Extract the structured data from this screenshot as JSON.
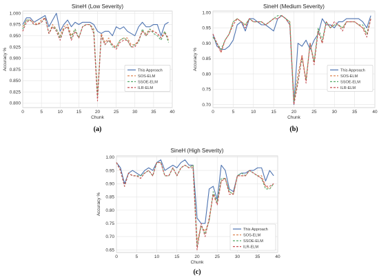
{
  "chart_data": [
    {
      "type": "line",
      "panel_label": "(a)",
      "title": "SineH (Low Severity)",
      "xlabel": "Chunk",
      "ylabel": "Accuracy %",
      "xlim": [
        0,
        40
      ],
      "ylim": [
        0.79,
        1.005
      ],
      "xticks": [
        0,
        5,
        10,
        15,
        20,
        25,
        30,
        35,
        40
      ],
      "yticks": [
        0.8,
        0.825,
        0.85,
        0.875,
        0.9,
        0.925,
        0.95,
        0.975,
        1.0
      ],
      "ytick_labels": [
        "0.800",
        "0.825",
        "0.850",
        "0.875",
        "0.900",
        "0.925",
        "0.950",
        "0.975",
        "1.000"
      ],
      "grid": true,
      "legend_position": "center-right",
      "x": [
        0,
        1,
        2,
        3,
        4,
        5,
        6,
        7,
        8,
        9,
        10,
        11,
        12,
        13,
        14,
        15,
        16,
        17,
        18,
        19,
        20,
        21,
        22,
        23,
        24,
        25,
        26,
        27,
        28,
        29,
        30,
        31,
        32,
        33,
        34,
        35,
        36,
        37,
        38,
        39
      ],
      "series": [
        {
          "name": "This Approach",
          "color": "#4c72b0",
          "dash": "",
          "values": [
            0.975,
            0.99,
            0.99,
            0.98,
            0.985,
            0.99,
            0.995,
            0.97,
            0.985,
            1.0,
            0.96,
            0.975,
            0.985,
            0.97,
            0.98,
            0.975,
            0.98,
            0.98,
            0.98,
            0.975,
            0.96,
            0.955,
            0.96,
            0.96,
            0.95,
            0.97,
            0.965,
            0.97,
            0.96,
            0.955,
            0.95,
            0.97,
            0.98,
            0.97,
            0.97,
            0.975,
            0.975,
            0.95,
            0.975,
            0.98
          ]
        },
        {
          "name": "SOS-ELM",
          "color": "#dd8452",
          "dash": "3 2",
          "values": [
            0.97,
            0.985,
            0.985,
            0.98,
            0.975,
            0.985,
            0.99,
            0.955,
            0.975,
            0.965,
            0.95,
            0.97,
            0.975,
            0.95,
            0.965,
            0.945,
            0.97,
            0.975,
            0.975,
            0.965,
            0.82,
            0.955,
            0.935,
            0.945,
            0.93,
            0.925,
            0.94,
            0.945,
            0.945,
            0.93,
            0.93,
            0.94,
            0.96,
            0.955,
            0.965,
            0.96,
            0.955,
            0.945,
            0.96,
            0.94
          ]
        },
        {
          "name": "SSOE-ELM",
          "color": "#55a868",
          "dash": "3 2",
          "values": [
            0.965,
            0.985,
            0.985,
            0.975,
            0.975,
            0.98,
            0.99,
            0.955,
            0.97,
            0.965,
            0.945,
            0.965,
            0.97,
            0.945,
            0.965,
            0.945,
            0.97,
            0.975,
            0.975,
            0.96,
            0.815,
            0.95,
            0.93,
            0.94,
            0.925,
            0.925,
            0.94,
            0.945,
            0.94,
            0.925,
            0.93,
            0.935,
            0.965,
            0.95,
            0.965,
            0.955,
            0.95,
            0.94,
            0.96,
            0.935
          ]
        },
        {
          "name": "ILR-ELM",
          "color": "#c44e52",
          "dash": "3 2",
          "values": [
            0.96,
            0.98,
            0.985,
            0.975,
            0.975,
            0.98,
            0.99,
            0.955,
            0.97,
            0.96,
            0.94,
            0.965,
            0.97,
            0.94,
            0.96,
            0.945,
            0.97,
            0.975,
            0.975,
            0.955,
            0.805,
            0.95,
            0.93,
            0.94,
            0.93,
            0.92,
            0.935,
            0.94,
            0.94,
            0.925,
            0.925,
            0.94,
            0.96,
            0.95,
            0.96,
            0.96,
            0.955,
            0.945,
            0.955,
            0.945
          ]
        }
      ]
    },
    {
      "type": "line",
      "panel_label": "(b)",
      "title": "SineH (Medium Severity)",
      "xlabel": "Chunk",
      "ylabel": "Accuracy %",
      "xlim": [
        0,
        40
      ],
      "ylim": [
        0.69,
        1.005
      ],
      "xticks": [
        0,
        5,
        10,
        15,
        20,
        25,
        30,
        35,
        40
      ],
      "yticks": [
        0.7,
        0.75,
        0.8,
        0.85,
        0.9,
        0.95,
        1.0
      ],
      "ytick_labels": [
        "0.70",
        "0.75",
        "0.80",
        "0.85",
        "0.90",
        "0.95",
        "1.00"
      ],
      "grid": true,
      "legend_position": "center-right",
      "x": [
        0,
        1,
        2,
        3,
        4,
        5,
        6,
        7,
        8,
        9,
        10,
        11,
        12,
        13,
        14,
        15,
        16,
        17,
        18,
        19,
        20,
        21,
        22,
        23,
        24,
        25,
        26,
        27,
        28,
        29,
        30,
        31,
        32,
        33,
        34,
        35,
        36,
        37,
        38,
        39
      ],
      "series": [
        {
          "name": "This Approach",
          "color": "#4c72b0",
          "dash": "",
          "values": [
            0.93,
            0.89,
            0.88,
            0.88,
            0.89,
            0.91,
            0.96,
            0.97,
            0.94,
            0.98,
            0.98,
            0.97,
            0.96,
            0.96,
            0.95,
            0.94,
            0.98,
            0.99,
            0.98,
            0.96,
            0.7,
            0.9,
            0.89,
            0.91,
            0.88,
            0.91,
            0.93,
            0.98,
            0.96,
            0.96,
            0.95,
            0.97,
            0.97,
            0.98,
            0.98,
            0.98,
            0.98,
            0.97,
            0.95,
            0.99
          ]
        },
        {
          "name": "SOS-ELM",
          "color": "#dd8452",
          "dash": "3 2",
          "values": [
            0.92,
            0.9,
            0.87,
            0.91,
            0.93,
            0.97,
            0.98,
            0.97,
            0.96,
            0.98,
            0.97,
            0.97,
            0.97,
            0.96,
            0.97,
            0.98,
            0.98,
            0.99,
            0.98,
            0.97,
            0.71,
            0.8,
            0.86,
            0.78,
            0.9,
            0.84,
            0.94,
            0.9,
            0.97,
            0.95,
            0.96,
            0.96,
            0.95,
            0.97,
            0.97,
            0.97,
            0.96,
            0.95,
            0.93,
            0.98
          ]
        },
        {
          "name": "SSOE-ELM",
          "color": "#55a868",
          "dash": "3 2",
          "values": [
            0.92,
            0.9,
            0.88,
            0.91,
            0.93,
            0.97,
            0.98,
            0.97,
            0.96,
            0.98,
            0.97,
            0.97,
            0.97,
            0.96,
            0.97,
            0.98,
            0.99,
            0.99,
            0.98,
            0.97,
            0.71,
            0.78,
            0.85,
            0.78,
            0.9,
            0.84,
            0.95,
            0.91,
            0.97,
            0.95,
            0.96,
            0.96,
            0.95,
            0.97,
            0.97,
            0.97,
            0.96,
            0.96,
            0.93,
            0.98
          ]
        },
        {
          "name": "ILR-ELM",
          "color": "#c44e52",
          "dash": "3 2",
          "values": [
            0.93,
            0.9,
            0.87,
            0.91,
            0.93,
            0.96,
            0.98,
            0.97,
            0.95,
            0.98,
            0.97,
            0.97,
            0.97,
            0.96,
            0.97,
            0.98,
            0.98,
            0.99,
            0.98,
            0.96,
            0.7,
            0.77,
            0.86,
            0.77,
            0.9,
            0.83,
            0.94,
            0.9,
            0.97,
            0.95,
            0.97,
            0.96,
            0.94,
            0.97,
            0.97,
            0.97,
            0.96,
            0.95,
            0.92,
            0.98
          ]
        }
      ]
    },
    {
      "type": "line",
      "panel_label": "(c)",
      "title": "SineH (High Severity)",
      "xlabel": "Chunk",
      "ylabel": "Accuracy %",
      "xlim": [
        0,
        40
      ],
      "ylim": [
        0.64,
        1.005
      ],
      "xticks": [
        0,
        5,
        10,
        15,
        20,
        25,
        30,
        35,
        40
      ],
      "yticks": [
        0.65,
        0.7,
        0.75,
        0.8,
        0.85,
        0.9,
        0.95,
        1.0
      ],
      "ytick_labels": [
        "0.65",
        "0.70",
        "0.75",
        "0.80",
        "0.85",
        "0.90",
        "0.95",
        "1.00"
      ],
      "grid": true,
      "legend_position": "lower-right",
      "x": [
        0,
        1,
        2,
        3,
        4,
        5,
        6,
        7,
        8,
        9,
        10,
        11,
        12,
        13,
        14,
        15,
        16,
        17,
        18,
        19,
        20,
        21,
        22,
        23,
        24,
        25,
        26,
        27,
        28,
        29,
        30,
        31,
        32,
        33,
        34,
        35,
        36,
        37,
        38,
        39
      ],
      "series": [
        {
          "name": "This Approach",
          "color": "#4c72b0",
          "dash": "",
          "values": [
            0.98,
            0.96,
            0.9,
            0.94,
            0.95,
            0.94,
            0.93,
            0.95,
            0.96,
            0.95,
            0.98,
            0.99,
            0.95,
            0.96,
            0.97,
            0.96,
            0.98,
            0.99,
            0.97,
            0.97,
            0.77,
            0.75,
            0.75,
            0.88,
            0.89,
            0.84,
            0.97,
            0.95,
            0.88,
            0.87,
            0.93,
            0.94,
            0.94,
            0.95,
            0.95,
            0.96,
            0.96,
            0.91,
            0.95,
            0.93
          ]
        },
        {
          "name": "SOS-ELM",
          "color": "#dd8452",
          "dash": "3 2",
          "values": [
            0.98,
            0.95,
            0.89,
            0.94,
            0.93,
            0.93,
            0.92,
            0.94,
            0.95,
            0.93,
            0.98,
            0.98,
            0.93,
            0.93,
            0.96,
            0.93,
            0.96,
            0.97,
            0.96,
            0.97,
            0.68,
            0.74,
            0.72,
            0.76,
            0.86,
            0.83,
            0.91,
            0.92,
            0.87,
            0.86,
            0.93,
            0.93,
            0.93,
            0.95,
            0.94,
            0.93,
            0.93,
            0.89,
            0.88,
            0.9
          ]
        },
        {
          "name": "SSOE-ELM",
          "color": "#55a868",
          "dash": "3 2",
          "values": [
            0.98,
            0.95,
            0.89,
            0.94,
            0.93,
            0.93,
            0.93,
            0.94,
            0.95,
            0.93,
            0.98,
            0.98,
            0.93,
            0.93,
            0.96,
            0.93,
            0.96,
            0.97,
            0.96,
            0.97,
            0.66,
            0.74,
            0.71,
            0.76,
            0.87,
            0.83,
            0.92,
            0.92,
            0.87,
            0.86,
            0.93,
            0.94,
            0.93,
            0.95,
            0.94,
            0.93,
            0.92,
            0.88,
            0.88,
            0.9
          ]
        },
        {
          "name": "ILR-ELM",
          "color": "#c44e52",
          "dash": "3 2",
          "values": [
            0.98,
            0.95,
            0.89,
            0.94,
            0.93,
            0.93,
            0.92,
            0.94,
            0.95,
            0.93,
            0.98,
            0.98,
            0.93,
            0.93,
            0.96,
            0.93,
            0.96,
            0.97,
            0.96,
            0.96,
            0.65,
            0.75,
            0.7,
            0.77,
            0.86,
            0.82,
            0.91,
            0.92,
            0.86,
            0.86,
            0.93,
            0.93,
            0.93,
            0.95,
            0.94,
            0.93,
            0.92,
            0.89,
            0.89,
            0.9
          ]
        }
      ]
    }
  ]
}
